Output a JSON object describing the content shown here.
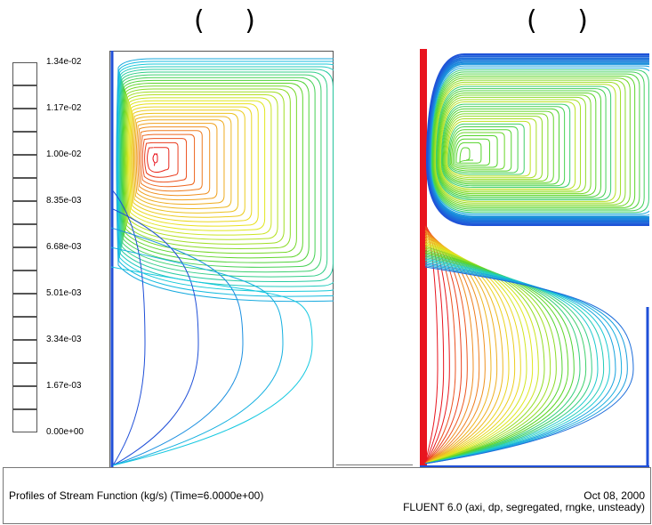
{
  "header": {
    "left_parens": "( )",
    "right_parens": "( )"
  },
  "legend": {
    "labels": [
      "1.34e-02",
      "1.17e-02",
      "1.00e-02",
      "8.35e-03",
      "6.68e-03",
      "5.01e-03",
      "3.34e-03",
      "1.67e-03",
      "0.00e+00"
    ]
  },
  "footer": {
    "title": "Profiles of Stream Function (kg/s)  (Time=6.0000e+00)",
    "date": "Oct 08, 2000",
    "solver": "FLUENT 6.0 (axi, dp, segregated, rngke, unsteady)"
  },
  "colors": {
    "blue": "#1f4fd8",
    "cyan": "#14c8e0",
    "green": "#55d42c",
    "yellow": "#e8e81e",
    "orange": "#f0a020",
    "red": "#e8141e"
  }
}
